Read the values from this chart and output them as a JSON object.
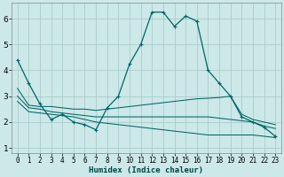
{
  "title": "",
  "xlabel": "Humidex (Indice chaleur)",
  "ylabel": "",
  "bg_color": "#cce8e8",
  "grid_color": "#aacccc",
  "line_color": "#006666",
  "xlim": [
    -0.5,
    23.5
  ],
  "ylim": [
    0.8,
    6.6
  ],
  "yticks": [
    1,
    2,
    3,
    4,
    5,
    6
  ],
  "xticks": [
    0,
    1,
    2,
    3,
    4,
    5,
    6,
    7,
    8,
    9,
    10,
    11,
    12,
    13,
    14,
    15,
    16,
    17,
    18,
    19,
    20,
    21,
    22,
    23
  ],
  "line1_x": [
    0,
    1,
    2,
    3,
    4,
    5,
    6,
    7,
    8,
    9,
    10,
    11,
    12,
    13,
    14,
    15,
    16,
    17,
    18,
    19,
    20,
    21,
    22,
    23
  ],
  "line1_y": [
    4.4,
    3.5,
    2.7,
    2.1,
    2.3,
    2.0,
    1.9,
    1.7,
    2.55,
    3.0,
    4.25,
    5.0,
    6.25,
    6.25,
    5.7,
    6.1,
    5.9,
    4.0,
    3.5,
    3.0,
    2.2,
    2.0,
    1.8,
    1.45
  ],
  "line2_x": [
    0,
    1,
    2,
    3,
    4,
    5,
    6,
    7,
    8,
    9,
    10,
    11,
    12,
    13,
    14,
    15,
    16,
    17,
    18,
    19,
    20,
    21,
    22,
    23
  ],
  "line2_y": [
    3.3,
    2.65,
    2.6,
    2.6,
    2.55,
    2.5,
    2.5,
    2.45,
    2.5,
    2.55,
    2.6,
    2.65,
    2.7,
    2.75,
    2.8,
    2.85,
    2.9,
    2.92,
    2.95,
    3.0,
    2.3,
    2.1,
    2.0,
    1.9
  ],
  "line3_x": [
    0,
    1,
    2,
    3,
    4,
    5,
    6,
    7,
    8,
    9,
    10,
    11,
    12,
    13,
    14,
    15,
    16,
    17,
    18,
    19,
    20,
    21,
    22,
    23
  ],
  "line3_y": [
    3.0,
    2.55,
    2.5,
    2.4,
    2.35,
    2.3,
    2.25,
    2.2,
    2.2,
    2.2,
    2.2,
    2.2,
    2.2,
    2.2,
    2.2,
    2.2,
    2.2,
    2.2,
    2.15,
    2.1,
    2.05,
    2.0,
    1.85,
    1.75
  ],
  "line4_x": [
    0,
    1,
    2,
    3,
    4,
    5,
    6,
    7,
    8,
    9,
    10,
    11,
    12,
    13,
    14,
    15,
    16,
    17,
    18,
    19,
    20,
    21,
    22,
    23
  ],
  "line4_y": [
    2.8,
    2.4,
    2.35,
    2.3,
    2.25,
    2.2,
    2.1,
    2.0,
    1.95,
    1.9,
    1.85,
    1.8,
    1.75,
    1.7,
    1.65,
    1.6,
    1.55,
    1.5,
    1.5,
    1.5,
    1.5,
    1.5,
    1.45,
    1.4
  ]
}
